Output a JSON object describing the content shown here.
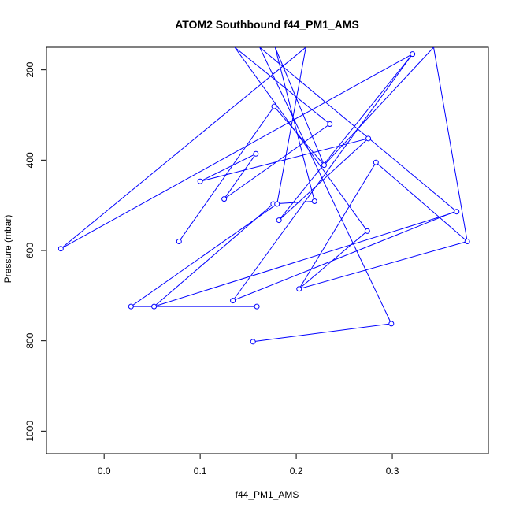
{
  "chart_data": {
    "type": "line",
    "title": "ATOM2 Southbound f44_PM1_AMS",
    "xlabel": "f44_PM1_AMS",
    "ylabel": "Pressure (mbar)",
    "xlim": [
      -0.06,
      0.4
    ],
    "ylim": [
      1050,
      150
    ],
    "y_reversed": true,
    "x_ticks": [
      0.0,
      0.1,
      0.2,
      0.3
    ],
    "x_tick_labels": [
      "0.0",
      "0.1",
      "0.2",
      "0.3"
    ],
    "y_ticks": [
      200,
      400,
      600,
      800,
      1000
    ],
    "y_tick_labels": [
      "200",
      "400",
      "600",
      "800",
      "1000"
    ],
    "grid": false,
    "legend": "none",
    "series": [
      {
        "color": "#0000ff",
        "marker": "open-circle",
        "points": [
          [
            0.155,
            802
          ],
          [
            0.299,
            762
          ],
          [
            0.162,
            150
          ],
          [
            0.367,
            514
          ],
          [
            0.052,
            724
          ],
          [
            0.176,
            497
          ],
          [
            0.219,
            491
          ],
          [
            0.178,
            150
          ],
          [
            0.229,
            411
          ],
          [
            0.343,
            150
          ],
          [
            0.378,
            580
          ],
          [
            0.203,
            685
          ],
          [
            0.274,
            557
          ],
          [
            0.136,
            150
          ],
          [
            0.235,
            320
          ],
          [
            0.125,
            486
          ],
          [
            0.158,
            386
          ],
          [
            0.1,
            447
          ],
          [
            0.275,
            352
          ],
          [
            0.182,
            533
          ],
          [
            0.321,
            165
          ],
          [
            -0.045,
            596
          ],
          [
            0.21,
            150
          ],
          [
            0.18,
            497
          ],
          [
            0.028,
            724
          ],
          [
            0.159,
            724
          ]
        ],
        "markers": [
          [
            0.155,
            802
          ],
          [
            0.299,
            762
          ],
          [
            0.367,
            514
          ],
          [
            0.052,
            724
          ],
          [
            0.176,
            497
          ],
          [
            0.219,
            491
          ],
          [
            0.229,
            411
          ],
          [
            0.378,
            580
          ],
          [
            0.203,
            685
          ],
          [
            0.274,
            557
          ],
          [
            0.235,
            320
          ],
          [
            0.125,
            486
          ],
          [
            0.158,
            386
          ],
          [
            0.1,
            447
          ],
          [
            0.275,
            352
          ],
          [
            0.182,
            533
          ],
          [
            0.321,
            165
          ],
          [
            -0.045,
            596
          ],
          [
            0.18,
            497
          ],
          [
            0.028,
            724
          ],
          [
            0.159,
            724
          ],
          [
            0.134,
            711
          ],
          [
            0.283,
            405
          ],
          [
            0.078,
            580
          ],
          [
            0.177,
            281
          ]
        ],
        "extra_segments": [
          [
            [
              0.134,
              711
            ],
            [
              0.365,
              514
            ]
          ],
          [
            [
              0.134,
              711
            ],
            [
              0.321,
              165
            ]
          ],
          [
            [
              0.283,
              405
            ],
            [
              0.203,
              685
            ]
          ],
          [
            [
              0.283,
              405
            ],
            [
              0.378,
              580
            ]
          ],
          [
            [
              0.078,
              580
            ],
            [
              0.177,
              281
            ]
          ],
          [
            [
              0.177,
              281
            ],
            [
              0.229,
              411
            ]
          ]
        ]
      }
    ]
  }
}
